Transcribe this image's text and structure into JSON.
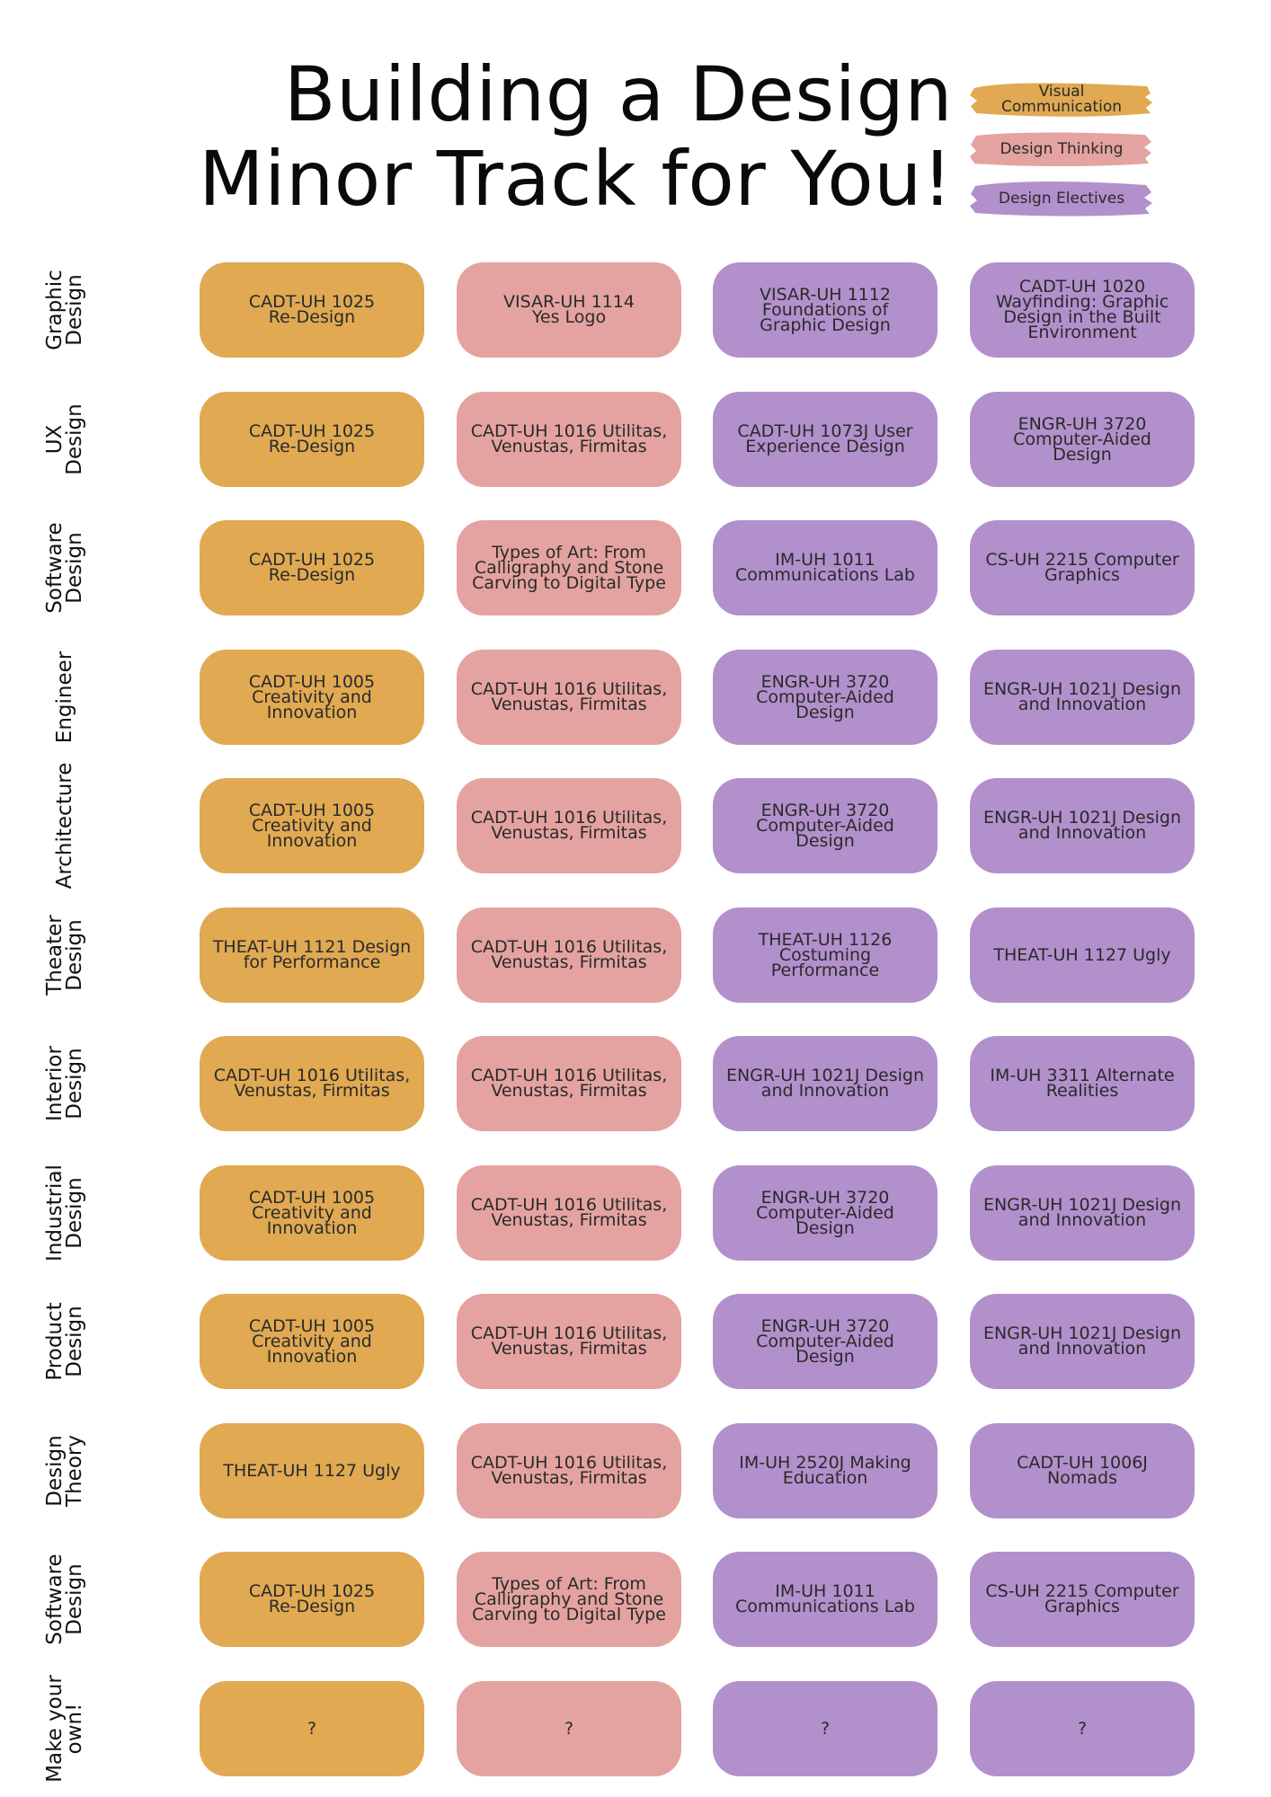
{
  "title": {
    "line1": "Building a Design",
    "line2": "Minor Track for You!"
  },
  "legend": [
    {
      "label": "Visual\nCommunication",
      "color": "#e0a952"
    },
    {
      "label": "Design Thinking",
      "color": "#e4a3a0"
    },
    {
      "label": "Design Electives",
      "color": "#b290cc"
    }
  ],
  "colors": {
    "visual": "#e0a952",
    "thinking": "#e4a3a0",
    "electives": "#b290cc"
  },
  "rows": [
    {
      "label": "Graphic\nDesign",
      "cells": [
        "CADT-UH 1025\nRe-Design",
        "VISAR-UH 1114\nYes Logo",
        "VISAR-UH 1112\nFoundations of\nGraphic Design",
        "CADT-UH 1020\nWayfinding: Graphic\nDesign in the Built\nEnvironment"
      ]
    },
    {
      "label": "UX\nDesign",
      "cells": [
        "CADT-UH 1025\nRe-Design",
        "CADT-UH 1016 Utilitas,\nVenustas, Firmitas",
        "CADT-UH 1073J User\nExperience Design",
        "ENGR-UH 3720\nComputer-Aided\nDesign"
      ]
    },
    {
      "label": "Software\nDesign",
      "cells": [
        "CADT-UH 1025\nRe-Design",
        "Types of Art: From\nCalligraphy and Stone\nCarving to Digital Type",
        "IM-UH 1011\nCommunications Lab",
        "CS-UH 2215 Computer\nGraphics"
      ]
    },
    {
      "label": "Engineer",
      "cells": [
        "CADT-UH 1005\nCreativity and\nInnovation",
        "CADT-UH 1016 Utilitas,\nVenustas, Firmitas",
        "ENGR-UH 3720\nComputer-Aided\nDesign",
        "ENGR-UH 1021J Design\nand Innovation"
      ]
    },
    {
      "label": "Architecture",
      "cells": [
        "CADT-UH 1005\nCreativity and\nInnovation",
        "CADT-UH 1016 Utilitas,\nVenustas, Firmitas",
        "ENGR-UH 3720\nComputer-Aided\nDesign",
        "ENGR-UH 1021J Design\nand Innovation"
      ]
    },
    {
      "label": "Theater\nDesign",
      "cells": [
        "THEAT-UH 1121 Design\nfor Performance",
        "CADT-UH 1016 Utilitas,\nVenustas, Firmitas",
        "THEAT-UH 1126\nCostuming\nPerformance",
        "THEAT-UH 1127 Ugly"
      ]
    },
    {
      "label": "Interior\nDesign",
      "cells": [
        "CADT-UH 1016 Utilitas,\nVenustas, Firmitas",
        "CADT-UH 1016 Utilitas,\nVenustas, Firmitas",
        "ENGR-UH 1021J Design\nand Innovation",
        "IM-UH 3311 Alternate\nRealities"
      ]
    },
    {
      "label": "Industrial\nDesign",
      "cells": [
        "CADT-UH 1005\nCreativity and\nInnovation",
        "CADT-UH 1016 Utilitas,\nVenustas, Firmitas",
        "ENGR-UH 3720\nComputer-Aided\nDesign",
        "ENGR-UH 1021J Design\nand Innovation"
      ]
    },
    {
      "label": "Product\nDesign",
      "cells": [
        "CADT-UH 1005\nCreativity and\nInnovation",
        "CADT-UH 1016 Utilitas,\nVenustas, Firmitas",
        "ENGR-UH 3720\nComputer-Aided\nDesign",
        "ENGR-UH 1021J Design\nand Innovation"
      ]
    },
    {
      "label": "Design\nTheory",
      "cells": [
        "THEAT-UH 1127 Ugly",
        "CADT-UH 1016 Utilitas,\nVenustas, Firmitas",
        "IM-UH 2520J Making\nEducation",
        "CADT-UH 1006J\nNomads"
      ]
    },
    {
      "label": "Software\nDesign",
      "cells": [
        "CADT-UH 1025\nRe-Design",
        "Types of Art: From\nCalligraphy and Stone\nCarving to Digital Type",
        "IM-UH 1011\nCommunications Lab",
        "CS-UH 2215 Computer\nGraphics"
      ]
    },
    {
      "label": "Make your\nown!",
      "cells": [
        "?",
        "?",
        "?",
        "?"
      ]
    }
  ]
}
